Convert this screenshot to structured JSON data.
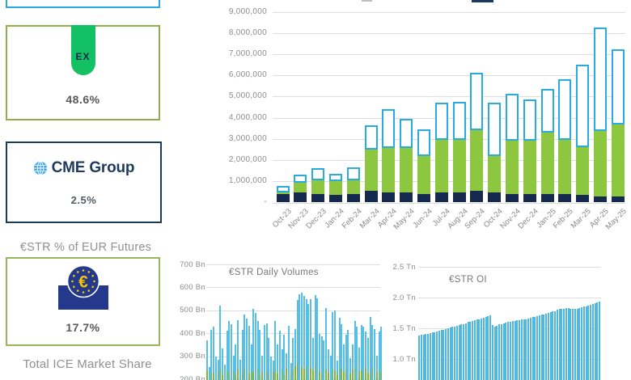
{
  "theme": {
    "accent_blue": "#29ABE2",
    "lime_green": "#8DC63F",
    "dark_navy": "#16294E",
    "eurex_green": "#13C064",
    "cme_navy": "#1E3A5F",
    "ecb_blue": "#24388C",
    "ecb_yellow": "#F5C400",
    "card_border_olive": "#8FAE4B",
    "card_border_green": "#98B75A",
    "axis_gray": "#8A8C8E"
  },
  "sidebar": {
    "eurex": {
      "logo": "EX",
      "share": "48.6%"
    },
    "cme": {
      "logo": "CME Group",
      "share": "2.5%"
    },
    "estr_futures_label": "€STR % of EUR Futures",
    "ecb": {
      "share": "17.7%"
    },
    "total_ice_label": "Total ICE Market Share"
  },
  "chart_data": [
    {
      "id": "eur_futures_monthly_volume",
      "type": "bar",
      "stacked": true,
      "grid": true,
      "ylim": [
        0,
        9000000
      ],
      "yticks": [
        "9,000,000",
        "8,000,000",
        "7,000,000",
        "6,000,000",
        "5,000,000",
        "4,000,000",
        "3,000,000",
        "2,000,000",
        "1,000,000",
        "-"
      ],
      "categories": [
        "Oct-23",
        "Nov-23",
        "Dec-23",
        "Jan-24",
        "Feb-24",
        "Mar-24",
        "Apr-24",
        "May-24",
        "Jun-24",
        "Jul-24",
        "Aug-24",
        "Sep-24",
        "Oct-24",
        "Nov-24",
        "Dec-24",
        "Jan-25",
        "Feb-25",
        "Mar-25",
        "Apr-25",
        "May-25"
      ],
      "series": [
        {
          "name": "navy-segment",
          "color": "#16294E",
          "values": [
            400000,
            450000,
            400000,
            350000,
            400000,
            550000,
            450000,
            450000,
            400000,
            450000,
            450000,
            550000,
            450000,
            400000,
            400000,
            400000,
            400000,
            350000,
            250000,
            250000
          ]
        },
        {
          "name": "green-segment",
          "color": "#8DC63F",
          "values": [
            50000,
            460000,
            620000,
            650000,
            650000,
            1940000,
            2130000,
            2130000,
            1800000,
            2490000,
            2510000,
            2860000,
            1750000,
            2510000,
            2510000,
            2900000,
            2560000,
            2240000,
            3130000,
            3410000
          ]
        },
        {
          "name": "hollow-blue-segment",
          "color": "#29ABE2",
          "values": [
            300000,
            390000,
            580000,
            340000,
            580000,
            1150000,
            1820000,
            1380000,
            1250000,
            1760000,
            1790000,
            2720000,
            2520000,
            2220000,
            1940000,
            2060000,
            2850000,
            3920000,
            4890000,
            3580000
          ]
        }
      ]
    },
    {
      "id": "estr_daily_volumes",
      "type": "bar",
      "title": "€STR Daily Volumes",
      "unit": "Bn",
      "yticks": [
        "700 Bn",
        "600 Bn",
        "500 Bn",
        "400 Bn",
        "300 Bn",
        "200 Bn"
      ],
      "ylim_visible": [
        200,
        700
      ],
      "series": [
        {
          "name": "daily-volume",
          "color": "#55BFE6",
          "values": [
            370,
            252,
            415,
            428,
            300,
            283,
            520,
            335,
            262,
            410,
            455,
            440,
            303,
            350,
            458,
            283,
            415,
            480,
            465,
            432,
            352,
            508,
            490,
            452,
            415,
            302,
            435,
            442,
            378,
            300,
            282,
            455,
            350,
            412,
            332,
            395,
            312,
            432,
            272,
            378,
            420,
            545,
            568,
            578,
            562,
            548,
            528,
            550,
            380,
            565,
            552,
            398,
            388,
            370,
            510,
            332,
            302,
            492,
            500,
            282,
            468,
            438,
            350,
            395,
            415,
            292,
            350,
            455,
            428,
            338,
            435,
            428,
            408,
            378,
            472,
            435,
            420,
            302,
            408,
            428
          ]
        },
        {
          "name": "daily-volume-green",
          "color": "#7FB441",
          "values": [
            238,
            0,
            232,
            225,
            0,
            230,
            246,
            222,
            0,
            240,
            228,
            0,
            236,
            222,
            242,
            0,
            228,
            250,
            0,
            226,
            238,
            232,
            0,
            246,
            222,
            230,
            0,
            240,
            226,
            0,
            232,
            248,
            226,
            0,
            238,
            222,
            246,
            0,
            230,
            238,
            258,
            270,
            0,
            252,
            246,
            260,
            0,
            248,
            240,
            265,
            0,
            236,
            226,
            0,
            242,
            228,
            0,
            250,
            238,
            222,
            0,
            246,
            230,
            238,
            0,
            226,
            242,
            250,
            0,
            232,
            240,
            0,
            248,
            226,
            238,
            252,
            0,
            230,
            242,
            236
          ]
        }
      ]
    },
    {
      "id": "estr_oi",
      "type": "bar",
      "title": "€STR OI",
      "unit": "Tn",
      "yticks": [
        "2.5 Tn",
        "2.0 Tn",
        "1.5 Tn",
        "1.0 Tn"
      ],
      "ylim_visible": [
        1.0,
        2.5
      ],
      "series": [
        {
          "name": "open-interest",
          "color": "#4FB8E0",
          "values": [
            1.38,
            1.39,
            1.4,
            1.41,
            1.41,
            1.42,
            1.43,
            1.44,
            1.45,
            1.46,
            1.47,
            1.48,
            1.49,
            1.5,
            1.51,
            1.52,
            1.53,
            1.54,
            1.55,
            1.56,
            1.57,
            1.58,
            1.6,
            1.61,
            1.62,
            1.63,
            1.64,
            1.65,
            1.66,
            1.67,
            1.68,
            1.7,
            1.71,
            1.55,
            1.53,
            1.54,
            1.56,
            1.57,
            1.58,
            1.59,
            1.6,
            1.61,
            1.62,
            1.62,
            1.63,
            1.63,
            1.64,
            1.65,
            1.65,
            1.66,
            1.67,
            1.68,
            1.69,
            1.7,
            1.71,
            1.72,
            1.73,
            1.74,
            1.75,
            1.76,
            1.77,
            1.78,
            1.8,
            1.81,
            1.82,
            1.82,
            1.83,
            1.83,
            1.82,
            1.81,
            1.81,
            1.82,
            1.83,
            1.84,
            1.85,
            1.86,
            1.87,
            1.88,
            1.89,
            1.91,
            1.92,
            1.93
          ]
        }
      ]
    }
  ]
}
